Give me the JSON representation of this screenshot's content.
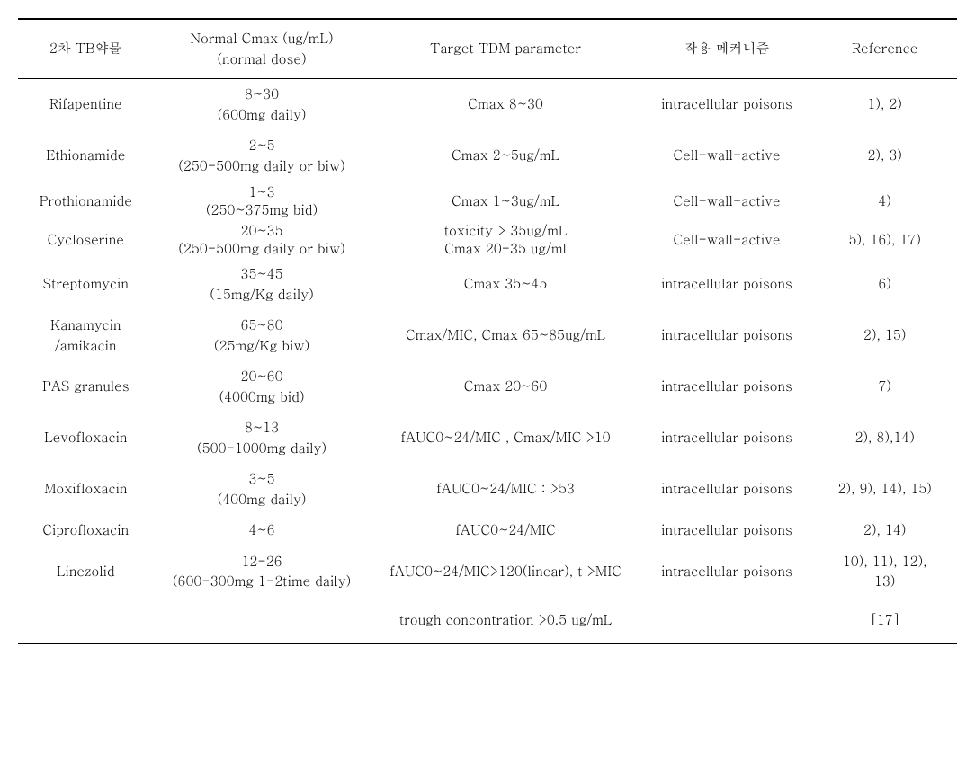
{
  "headers": {
    "drug": "2차 TB약물",
    "cmax_line1": "Normal Cmax (ug/mL)",
    "cmax_line2": "(normal dose)",
    "tdm": "Target TDM parameter",
    "mechanism": "작용 메커니즘",
    "reference": "Reference"
  },
  "rows": [
    {
      "drug": "Rifapentine",
      "cmax_line1": "8~30",
      "cmax_line2": "(600mg daily)",
      "tdm": "Cmax 8~30",
      "mechanism": "intracellular poisons",
      "reference": "1), 2)"
    },
    {
      "drug": "Ethionamide",
      "cmax_line1": "2~5",
      "cmax_line2": "(250-500mg daily or biw)",
      "tdm": "Cmax 2~5ug/mL",
      "mechanism": "Cell-wall-active",
      "reference": "2), 3)"
    },
    {
      "drug": "Prothionamide",
      "cmax_line1": "1~3",
      "cmax_line2": "(250~375mg bid)",
      "tdm": "Cmax 1~3ug/mL",
      "mechanism": "Cell-wall-active",
      "reference": "4)",
      "tight": true
    },
    {
      "drug": "Cycloserine",
      "cmax_line1": "20~35",
      "cmax_line2": "(250-500mg daily or biw)",
      "tdm_line1": "toxicity > 35ug/mL",
      "tdm_line2": "Cmax 20-35 ug/ml",
      "mechanism": "Cell-wall-active",
      "reference": "5), 16), 17)",
      "tight": true
    },
    {
      "drug": "Streptomycin",
      "cmax_line1": "35~45",
      "cmax_line2": "(15mg/Kg daily)",
      "tdm": "Cmax 35~45",
      "mechanism": "intracellular poisons",
      "reference": "6)"
    },
    {
      "drug_line1": "Kanamycin",
      "drug_line2": "/amikacin",
      "cmax_line1": "65~80",
      "cmax_line2": "(25mg/Kg biw)",
      "tdm": "Cmax/MIC, Cmax 65~85ug/mL",
      "mechanism": "intracellular poisons",
      "reference": "2), 15)"
    },
    {
      "drug": "PAS granules",
      "cmax_line1": "20~60",
      "cmax_line2": "(4000mg bid)",
      "tdm": "Cmax 20~60",
      "mechanism": "intracellular poisons",
      "reference": "7)"
    },
    {
      "drug": "Levofloxacin",
      "cmax_line1": "8~13",
      "cmax_line2": "(500-1000mg daily)",
      "tdm": "fAUC0~24/MIC , Cmax/MIC >10",
      "mechanism": "intracellular poisons",
      "reference": "2), 8),14)"
    },
    {
      "drug": "Moxifloxacin",
      "cmax_line1": "3~5",
      "cmax_line2": "(400mg daily)",
      "tdm": "fAUC0~24/MIC : >53",
      "mechanism": "intracellular poisons",
      "reference": "2), 9), 14), 15)"
    },
    {
      "drug": "Ciprofloxacin",
      "cmax_line1": "4~6",
      "cmax_line2": "",
      "tdm": "fAUC0~24/MIC",
      "mechanism": "intracellular poisons",
      "reference": "2), 14)"
    },
    {
      "drug": "Linezolid",
      "cmax_line1": "12-26",
      "cmax_line2": "(600-300mg 1-2time daily)",
      "tdm": "fAUC0~24/MIC>120(linear), t >MIC",
      "mechanism": "intracellular poisons",
      "ref_line1": "10), 11), 12),",
      "ref_line2": "13)"
    }
  ],
  "footer": {
    "tdm": "trough concontration >0.5 ug/mL",
    "reference": "[17]"
  }
}
